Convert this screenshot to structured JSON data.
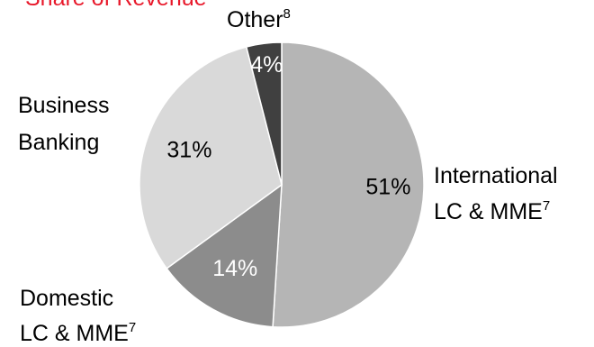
{
  "chart_data": {
    "type": "pie",
    "title": "Share of Revenue",
    "slices": [
      {
        "category": "International",
        "category_line2": "LC & MME",
        "superscript": "7",
        "value": 51,
        "label": "51%",
        "color": "#b5b5b5",
        "label_color": "#000000"
      },
      {
        "category": "Domestic",
        "category_line2": "LC & MME",
        "superscript": "7",
        "value": 14,
        "label": "14%",
        "color": "#8c8c8c",
        "label_color": "#ffffff"
      },
      {
        "category": "Business",
        "category_line2": "Banking",
        "superscript": "",
        "value": 31,
        "label": "31%",
        "color": "#d9d9d9",
        "label_color": "#000000"
      },
      {
        "category": "Other",
        "category_line2": "",
        "superscript": "8",
        "value": 4,
        "label": "4%",
        "color": "#404040",
        "label_color": "#ffffff"
      }
    ]
  }
}
